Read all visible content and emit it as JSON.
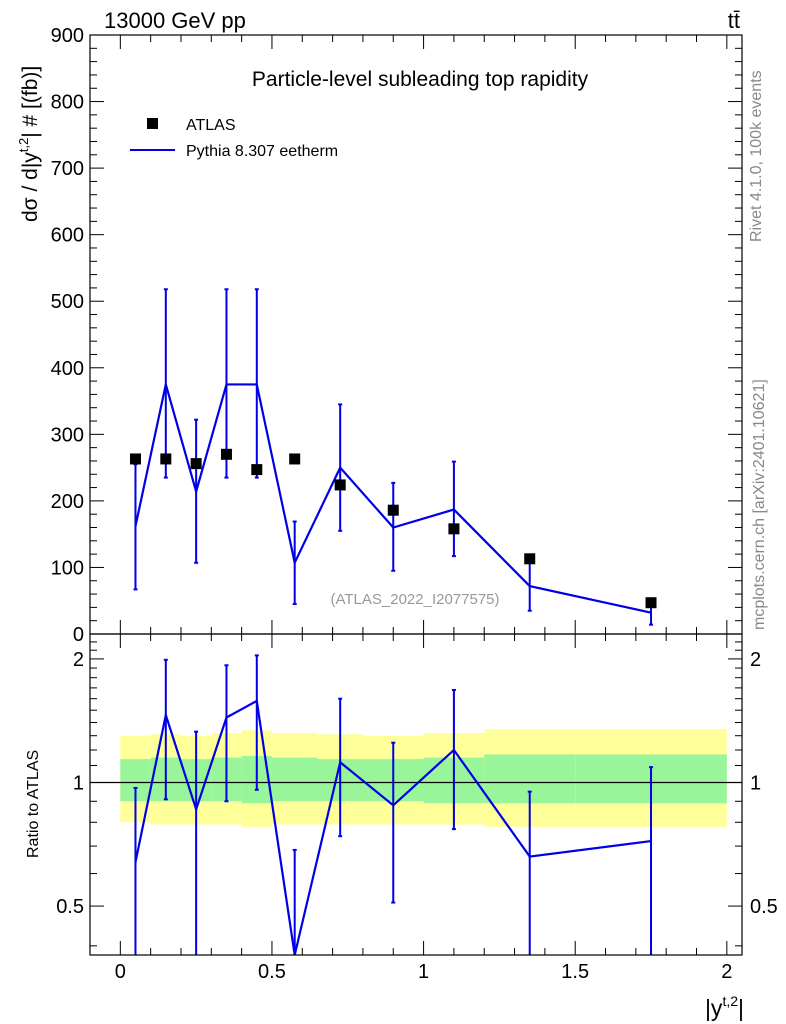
{
  "header": {
    "energy_label": "13000 GeV pp",
    "process_label": "tt̄",
    "side_label_top": "Rivet 4.1.0,  100k events",
    "side_label_bottom": "mcplots.cern.ch [arXiv:2401.10621]",
    "top_panel_ylabel": "dσ / d|y",
    "top_panel_ylabel_sup": "t,2",
    "top_panel_ylabel_tail": "| # [(fb)]",
    "ratio_panel_ylabel": "Ratio to ATLAS",
    "xlabel": "|y",
    "xlabel_sup": "t,2",
    "xlabel_tail": "|"
  },
  "chart_data": [
    {
      "type": "scatter",
      "title": "Particle-level subleading top rapidity",
      "analysis_id": "(ATLAS_2022_I2077575)",
      "ylim": [
        0,
        900
      ],
      "yticks": [
        0,
        100,
        200,
        300,
        400,
        500,
        600,
        700,
        800,
        900
      ],
      "xlim": [
        -0.1,
        2.05
      ],
      "legend": [
        {
          "label": "ATLAS",
          "style": "marker",
          "color": "#000000"
        },
        {
          "label": "Pythia 8.307 eetherm",
          "style": "line",
          "color": "#0000e6"
        }
      ],
      "series": [
        {
          "name": "ATLAS",
          "bin_edges": [
            0,
            0.1,
            0.2,
            0.3,
            0.4,
            0.5,
            0.65,
            0.8,
            1.0,
            1.2,
            1.5,
            2.0
          ],
          "x": [
            0.05,
            0.15,
            0.25,
            0.35,
            0.45,
            0.575,
            0.725,
            0.9,
            1.1,
            1.35,
            1.75
          ],
          "values": [
            263,
            263,
            256,
            270,
            247,
            263,
            224,
            186,
            158,
            113,
            47
          ]
        },
        {
          "name": "Pythia 8.307 eetherm",
          "x": [
            0.05,
            0.15,
            0.25,
            0.35,
            0.45,
            0.575,
            0.725,
            0.9,
            1.1,
            1.35,
            1.75
          ],
          "values": [
            162,
            375,
            214,
            375,
            375,
            107,
            250,
            160,
            187,
            72,
            32
          ],
          "err_low": [
            95,
            140,
            107,
            140,
            140,
            62,
            95,
            65,
            70,
            37,
            18
          ],
          "err_high": [
            93,
            143,
            108,
            143,
            143,
            62,
            95,
            67,
            72,
            38,
            20
          ]
        }
      ]
    },
    {
      "type": "line",
      "title": "Ratio to ATLAS",
      "ylim": [
        0.38,
        2.3
      ],
      "ytick_labels": [
        "0.5",
        "1",
        "2"
      ],
      "ytick_values": [
        0.5,
        1,
        2
      ],
      "xticks": [
        "0",
        "0.5",
        "1",
        "1.5",
        "2"
      ],
      "xtick_values": [
        0,
        0.5,
        1,
        1.5,
        2
      ],
      "band_edges": [
        0,
        0.1,
        0.2,
        0.3,
        0.4,
        0.5,
        0.65,
        0.8,
        1.0,
        1.2,
        1.5,
        2.0
      ],
      "band_inner": [
        [
          0.9,
          1.14
        ],
        [
          0.9,
          1.15
        ],
        [
          0.9,
          1.14
        ],
        [
          0.9,
          1.15
        ],
        [
          0.89,
          1.16
        ],
        [
          0.9,
          1.15
        ],
        [
          0.9,
          1.14
        ],
        [
          0.9,
          1.14
        ],
        [
          0.89,
          1.15
        ],
        [
          0.89,
          1.17
        ],
        [
          0.89,
          1.17
        ]
      ],
      "band_outer": [
        [
          0.8,
          1.3
        ],
        [
          0.79,
          1.31
        ],
        [
          0.79,
          1.3
        ],
        [
          0.79,
          1.32
        ],
        [
          0.78,
          1.34
        ],
        [
          0.79,
          1.32
        ],
        [
          0.79,
          1.31
        ],
        [
          0.79,
          1.3
        ],
        [
          0.79,
          1.32
        ],
        [
          0.78,
          1.35
        ],
        [
          0.78,
          1.35
        ]
      ],
      "band_colors": {
        "inner": "#99f599",
        "outer": "#ffff99"
      },
      "series": [
        {
          "name": "Pythia 8.307 eetherm",
          "x": [
            0.05,
            0.15,
            0.25,
            0.35,
            0.45,
            0.575,
            0.725,
            0.9,
            1.1,
            1.35,
            1.75
          ],
          "values": [
            0.64,
            1.46,
            0.86,
            1.44,
            1.58,
            0.375,
            1.12,
            0.88,
            1.2,
            0.66,
            0.72
          ],
          "err_low": [
            0.26,
            0.55,
            0.5,
            0.54,
            0.62,
            0.005,
            0.38,
            0.37,
            0.43,
            0.28,
            0.34
          ],
          "err_high": [
            0.33,
            0.53,
            0.47,
            0.49,
            0.46,
            0.31,
            0.48,
            0.37,
            0.48,
            0.29,
            0.37
          ]
        }
      ]
    }
  ]
}
